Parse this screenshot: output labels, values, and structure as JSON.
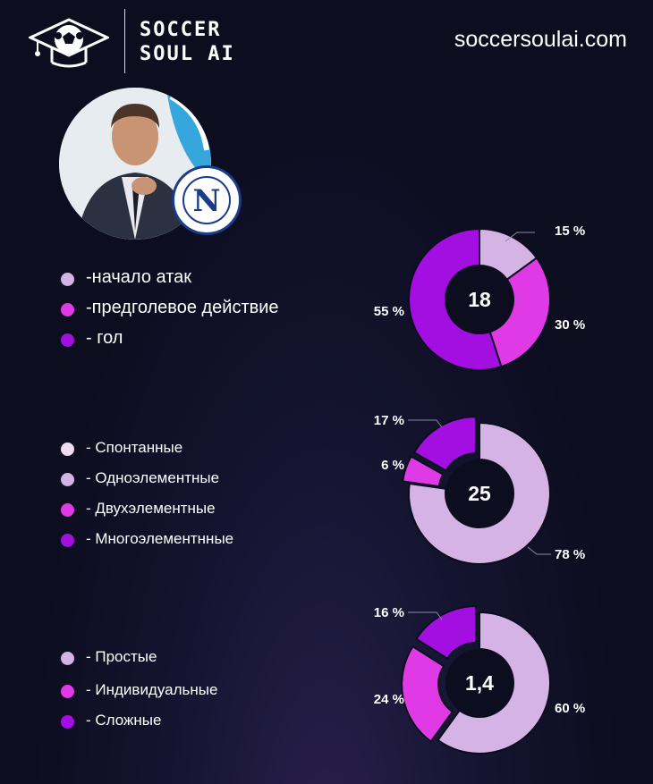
{
  "header": {
    "brand_line1": "SOCCER",
    "brand_line2": "SOUL AI",
    "website": "soccersoulai.com"
  },
  "colors": {
    "light": "#d5b3e4",
    "pink": "#e03ae6",
    "purple": "#a20fe0",
    "pale": "#f0dcf2"
  },
  "chart_data": [
    {
      "type": "pie",
      "center_label": "18",
      "labels": [
        "-начало атак",
        "-предголевое действие",
        "- гол"
      ],
      "values": [
        15,
        30,
        55
      ],
      "value_labels": [
        "15 %",
        "30 %",
        "55 %"
      ],
      "colors": [
        "#d5b3e4",
        "#e03ae6",
        "#a20fe0"
      ]
    },
    {
      "type": "pie",
      "center_label": "25",
      "labels": [
        "- Спонтанные",
        "- Одноэлементные",
        "- Двухэлементные",
        "- Многоэлементнные"
      ],
      "values": [
        0,
        78,
        6,
        17
      ],
      "value_labels": [
        "",
        "78 %",
        "6 %",
        "17 %"
      ],
      "colors": [
        "#f0dcf2",
        "#d5b3e4",
        "#e03ae6",
        "#a20fe0"
      ]
    },
    {
      "type": "pie",
      "center_label": "1,4",
      "labels": [
        "- Простые",
        "- Индивидуальные",
        "- Сложные"
      ],
      "values": [
        60,
        24,
        16
      ],
      "value_labels": [
        "60 %",
        "24 %",
        "16 %"
      ],
      "colors": [
        "#d5b3e4",
        "#e03ae6",
        "#a20fe0"
      ]
    }
  ]
}
